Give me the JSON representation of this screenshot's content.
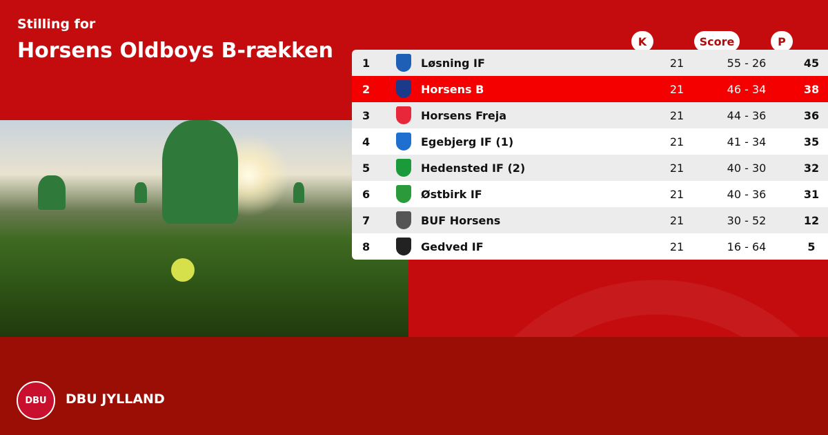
{
  "header": {
    "subtitle": "Stilling for",
    "title": "Horsens Oldboys B-rækken"
  },
  "columns": {
    "k": "K",
    "score": "Score",
    "p": "P"
  },
  "rows": [
    {
      "pos": "1",
      "team": "Løsning IF",
      "k": "21",
      "score": "55 - 26",
      "p": "45",
      "logo_color": "#1f5fb5"
    },
    {
      "pos": "2",
      "team": "Horsens B",
      "k": "21",
      "score": "46 - 34",
      "p": "38",
      "logo_color": "#1c3a8a",
      "highlight": true
    },
    {
      "pos": "3",
      "team": "Horsens Freja",
      "k": "21",
      "score": "44 - 36",
      "p": "36",
      "logo_color": "#e8283a"
    },
    {
      "pos": "4",
      "team": "Egebjerg IF (1)",
      "k": "21",
      "score": "41 - 34",
      "p": "35",
      "logo_color": "#1f6fd0"
    },
    {
      "pos": "5",
      "team": "Hedensted IF  (2)",
      "k": "21",
      "score": "40 - 30",
      "p": "32",
      "logo_color": "#1a9a3a"
    },
    {
      "pos": "6",
      "team": "Østbirk IF",
      "k": "21",
      "score": "40 - 36",
      "p": "31",
      "logo_color": "#2a9a3a"
    },
    {
      "pos": "7",
      "team": "BUF Horsens",
      "k": "21",
      "score": "30 - 52",
      "p": "12",
      "logo_color": "#555555"
    },
    {
      "pos": "8",
      "team": "Gedved IF",
      "k": "21",
      "score": "16 - 64",
      "p": "5",
      "logo_color": "#222222"
    }
  ],
  "footer": {
    "brand": "DBU JYLLAND",
    "logo_text": "DBU"
  },
  "colors": {
    "top": "#c40c0e",
    "bottom": "#9b0e05",
    "highlight": "#f50000"
  }
}
